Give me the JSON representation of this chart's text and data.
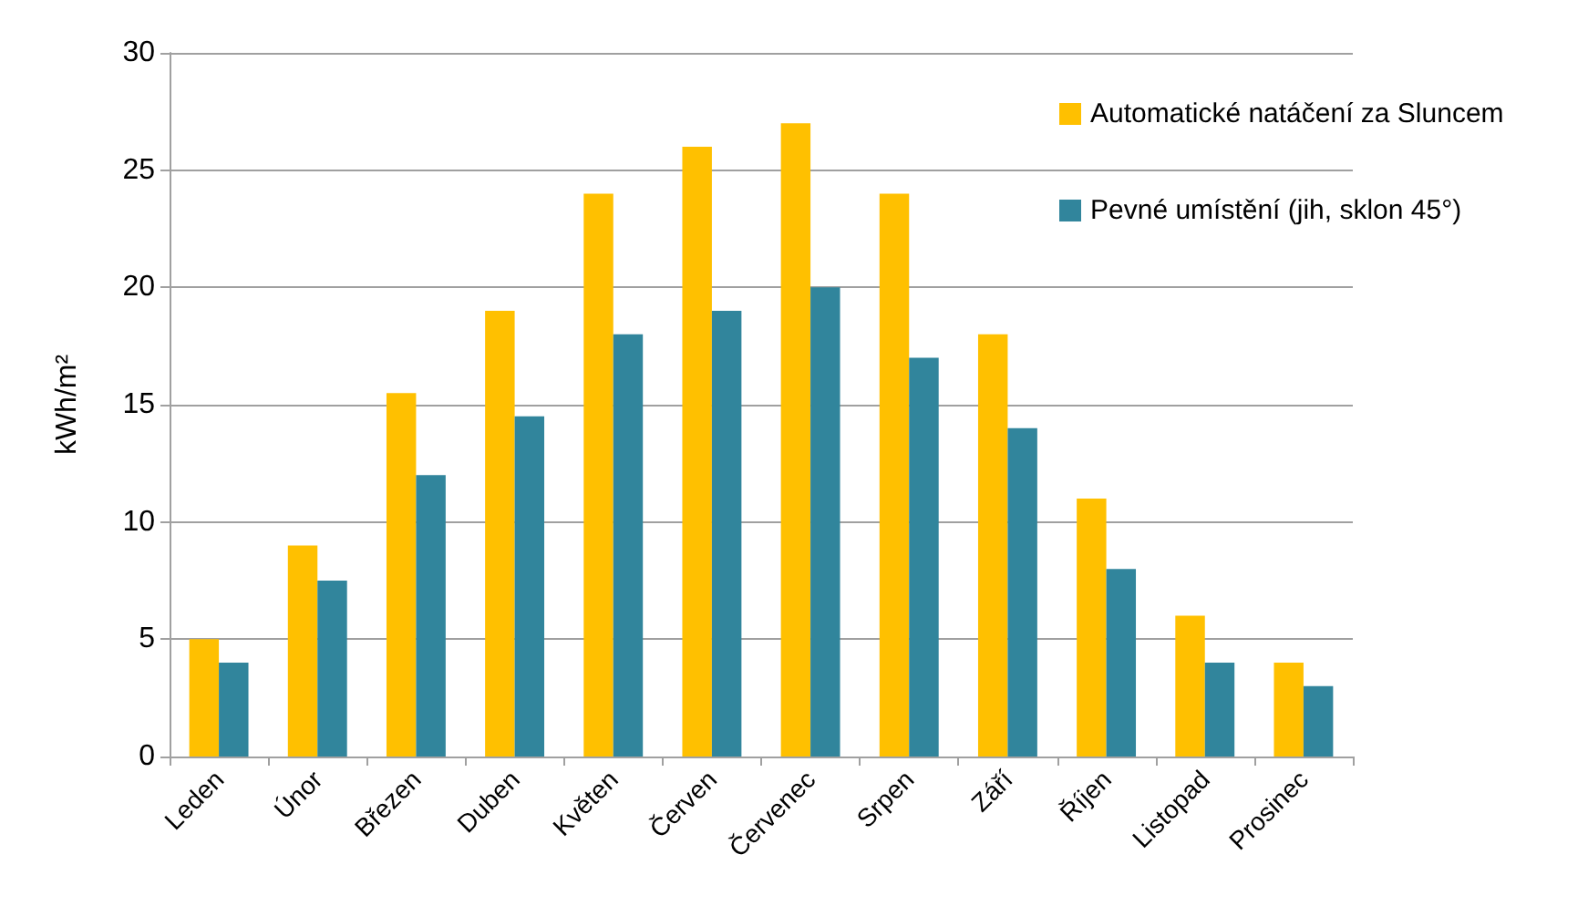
{
  "chart_data": {
    "type": "bar",
    "ylabel": "kWh/m²",
    "categories": [
      "Leden",
      "Únor",
      "Březen",
      "Duben",
      "Květen",
      "Červen",
      "Červenec",
      "Srpen",
      "Září",
      "Říjen",
      "Listopad",
      "Prosinec"
    ],
    "series": [
      {
        "name": "Automatické natáčení za Sluncem",
        "color": "#ffc000",
        "values": [
          5,
          9,
          15.5,
          19,
          24,
          26,
          27,
          24,
          18,
          11,
          6,
          4
        ]
      },
      {
        "name": "Pevné umístění (jih, sklon 45°)",
        "color": "#31859c",
        "values": [
          4,
          7.5,
          12,
          14.5,
          18,
          19,
          20,
          17,
          14,
          8,
          4,
          3
        ]
      }
    ],
    "ylim": [
      0,
      30
    ],
    "yticks": [
      0,
      5,
      10,
      15,
      20,
      25,
      30
    ],
    "grid": "y",
    "legend": "top right"
  }
}
